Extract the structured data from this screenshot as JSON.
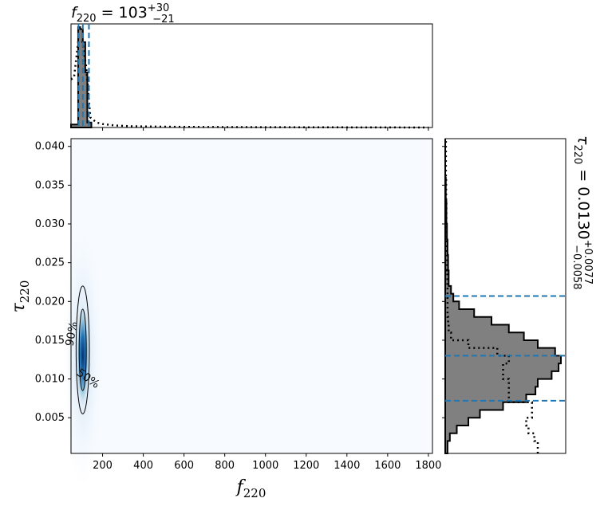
{
  "chart_data": [
    {
      "type": "bar",
      "panel": "top-marginal",
      "title": "f220 = 103 +30/-21",
      "title_parts": {
        "param": "f",
        "sub": "220",
        "median": "103",
        "plus": "+30",
        "minus": "−21"
      },
      "x_range": [
        45,
        1820
      ],
      "bin_edges": [
        45,
        80,
        90,
        103,
        115,
        125,
        145
      ],
      "histogram_values": [
        0.03,
        1.0,
        0.98,
        0.85,
        0.55,
        0.05
      ],
      "prior_dotted_x": [
        45,
        60,
        80,
        100,
        120,
        140,
        170,
        200,
        260,
        350,
        500,
        700,
        1000,
        1800
      ],
      "prior_dotted_y": [
        0.48,
        0.5,
        0.85,
        0.86,
        0.6,
        0.1,
        0.05,
        0.035,
        0.02,
        0.012,
        0.008,
        0.005,
        0.003,
        0.0
      ],
      "quantile_lines": [
        82,
        103,
        133
      ],
      "colors": {
        "fill": "#808080",
        "edge": "#000000",
        "quantile": "#1f77b4"
      }
    },
    {
      "type": "heatmap",
      "panel": "joint",
      "xlabel": "f220",
      "ylabel": "τ220",
      "xlim": [
        45,
        1820
      ],
      "ylim": [
        0.0004,
        0.041
      ],
      "xticks": [
        200,
        400,
        600,
        800,
        1000,
        1200,
        1400,
        1600,
        1800
      ],
      "xtick_labels": [
        "200",
        "400",
        "600",
        "800",
        "1000",
        "1200",
        "1400",
        "1600",
        "1800"
      ],
      "yticks": [
        0.005,
        0.01,
        0.015,
        0.02,
        0.025,
        0.03,
        0.035,
        0.04
      ],
      "ytick_labels": [
        "0.005",
        "0.010",
        "0.015",
        "0.020",
        "0.025",
        "0.030",
        "0.035",
        "0.040"
      ],
      "density_peak": {
        "f220": 103,
        "tau220": 0.013
      },
      "contours": [
        {
          "label": "50%",
          "f_range": [
            85,
            120
          ],
          "tau_range": [
            0.0085,
            0.019
          ]
        },
        {
          "label": "90%",
          "f_range": [
            70,
            135
          ],
          "tau_range": [
            0.0055,
            0.022
          ]
        }
      ],
      "colormap": "Blues"
    },
    {
      "type": "bar",
      "panel": "right-marginal",
      "title": "τ220 = 0.0130 +0.0077/-0.0058",
      "title_parts": {
        "param": "τ",
        "sub": "220",
        "median": "0.0130",
        "plus": "+0.0077",
        "minus": "−0.0058"
      },
      "orientation": "horizontal",
      "ylim": [
        0.0004,
        0.041
      ],
      "bins_tau": [
        0.0004,
        0.002,
        0.003,
        0.004,
        0.005,
        0.006,
        0.007,
        0.008,
        0.009,
        0.01,
        0.011,
        0.012,
        0.013,
        0.014,
        0.015,
        0.016,
        0.017,
        0.018,
        0.019,
        0.02,
        0.021,
        0.022,
        0.024,
        0.026,
        0.028,
        0.03,
        0.033,
        0.036,
        0.041
      ],
      "histogram_values": [
        0.02,
        0.04,
        0.1,
        0.2,
        0.3,
        0.5,
        0.7,
        0.78,
        0.8,
        0.92,
        0.98,
        1.0,
        0.95,
        0.8,
        0.68,
        0.55,
        0.4,
        0.25,
        0.12,
        0.07,
        0.05,
        0.03,
        0.025,
        0.02,
        0.015,
        0.01,
        0.005,
        0.0
      ],
      "prior_dotted_values": [
        0.8,
        0.77,
        0.72,
        0.7,
        0.75,
        0.75,
        0.55,
        0.55,
        0.55,
        0.5,
        0.5,
        0.55,
        0.45,
        0.2,
        0.05,
        0.03,
        0.025,
        0.02,
        0.02,
        0.02,
        0.02,
        0.018,
        0.016,
        0.014,
        0.012,
        0.01,
        0.008,
        0.006
      ],
      "quantile_lines": [
        0.0072,
        0.013,
        0.0207
      ],
      "colors": {
        "fill": "#808080",
        "edge": "#000000",
        "quantile": "#1f77b4"
      }
    }
  ]
}
